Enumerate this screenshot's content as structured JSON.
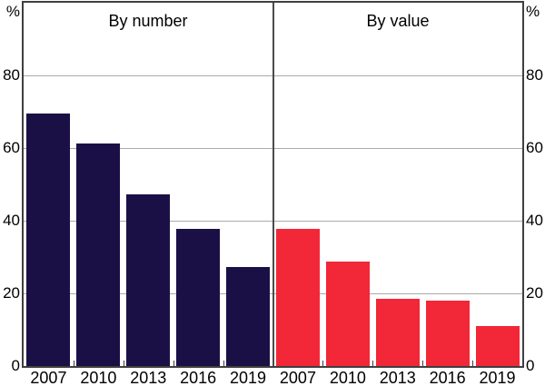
{
  "chart_data": {
    "type": "bar",
    "unit": "%",
    "categories": [
      "2007",
      "2010",
      "2013",
      "2016",
      "2019"
    ],
    "panels": [
      {
        "title": "By number",
        "color": "#1B1046",
        "values": [
          69.4,
          61.3,
          47.3,
          37.7,
          27.2
        ]
      },
      {
        "title": "By value",
        "color": "#F22737",
        "values": [
          37.8,
          28.7,
          18.4,
          17.9,
          10.9
        ]
      }
    ],
    "ylim": [
      0,
      100
    ],
    "yticks": [
      0,
      20,
      40,
      60,
      80
    ],
    "y_axis_unit_label": "%",
    "grid": true,
    "gridline_color": "#aaaaaa",
    "frame_color": "#3f3f3f",
    "bar_colors": {
      "by_number": "#1B1046",
      "by_value": "#F22737"
    },
    "background": "#ffffff",
    "text_color": "#000000",
    "legend_position": "none",
    "layout": "two-panel-shared-y-axis"
  }
}
